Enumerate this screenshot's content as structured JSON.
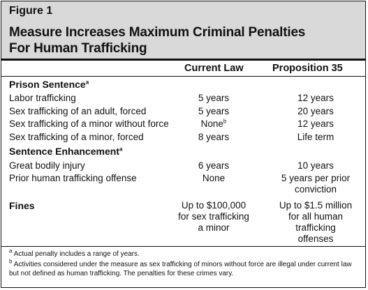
{
  "figure_label": "Figure 1",
  "title_line1": "Measure Increases Maximum Criminal Penalties",
  "title_line2": "For Human Trafficking",
  "columns": {
    "current": "Current Law",
    "prop": "Proposition 35"
  },
  "prison": {
    "heading": "Prison Sentence",
    "heading_sup": "a",
    "rows": [
      {
        "label": "Labor trafficking",
        "current": "5 years",
        "prop": "12 years"
      },
      {
        "label": "Sex trafficking of an adult, forced",
        "current": "5 years",
        "prop": "20 years"
      },
      {
        "label": "Sex trafficking of a minor without force",
        "current": "None",
        "current_sup": "b",
        "prop": "12 years"
      },
      {
        "label": "Sex trafficking of a minor, forced",
        "current": "8 years",
        "prop": "Life term"
      }
    ]
  },
  "enhancement": {
    "heading": "Sentence Enhancement",
    "heading_sup": "a",
    "rows": [
      {
        "label": "Great bodily injury",
        "current": "6 years",
        "prop": "10 years"
      },
      {
        "label": "Prior human trafficking offense",
        "current": "None",
        "prop_line1": "5 years per prior",
        "prop_line2": "conviction"
      }
    ]
  },
  "fines": {
    "heading": "Fines",
    "current_lines": [
      "Up to $100,000",
      "for sex trafficking",
      "a minor"
    ],
    "prop_lines": [
      "Up to $1.5 million",
      "for all human",
      "trafficking",
      "offenses"
    ]
  },
  "footnotes": {
    "a_mark": "a",
    "a_text": "Actual penalty includes a range of years.",
    "b_mark": "b",
    "b_text": "Activities considered under the measure as sex trafficking of minors without force are illegal under current law but not defined as human trafficking. The penalties for these crimes vary."
  }
}
